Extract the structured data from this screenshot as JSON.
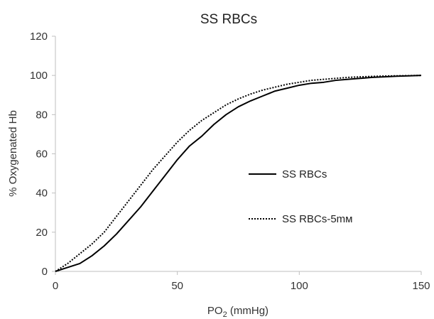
{
  "chart_data": {
    "type": "line",
    "title": "SS RBCs",
    "xlabel_main": "PO",
    "xlabel_sub": "2",
    "xlabel_unit": " (mmHg)",
    "ylabel": "% Oxygenated Hb",
    "xlim": [
      0,
      150
    ],
    "ylim": [
      0,
      120
    ],
    "xticks": [
      "0",
      "50",
      "100",
      "150"
    ],
    "yticks": [
      "0",
      "20",
      "40",
      "60",
      "80",
      "100",
      "120"
    ],
    "grid": false,
    "legend_position": "right",
    "series": [
      {
        "name": "SS RBCs",
        "style": "solid",
        "color": "#000000",
        "x": [
          0,
          5,
          10,
          15,
          20,
          25,
          30,
          35,
          40,
          45,
          50,
          55,
          60,
          65,
          70,
          75,
          80,
          85,
          90,
          95,
          100,
          105,
          110,
          115,
          120,
          125,
          130,
          135,
          140,
          145,
          150
        ],
        "y": [
          0,
          2,
          4,
          8,
          13,
          19,
          26,
          33,
          41,
          49,
          57,
          64,
          69,
          75,
          80,
          84,
          87,
          89.5,
          92,
          93.5,
          95,
          96,
          96.5,
          97.5,
          98,
          98.5,
          99,
          99.3,
          99.6,
          99.8,
          100
        ]
      },
      {
        "name": "SS RBCs-5mм",
        "style": "dotted",
        "color": "#000000",
        "x": [
          0,
          5,
          10,
          15,
          20,
          25,
          30,
          35,
          40,
          45,
          50,
          55,
          60,
          65,
          70,
          75,
          80,
          85,
          90,
          95,
          100,
          105,
          110,
          115,
          120,
          125,
          130,
          135,
          140,
          145,
          150
        ],
        "y": [
          0,
          4,
          9,
          14,
          20,
          28,
          36,
          44,
          52,
          59,
          66,
          72,
          77,
          81,
          85,
          88,
          90.5,
          92.5,
          94,
          95.5,
          96.5,
          97.5,
          98,
          98.5,
          99,
          99.3,
          99.5,
          99.7,
          99.8,
          99.9,
          100
        ]
      }
    ]
  }
}
